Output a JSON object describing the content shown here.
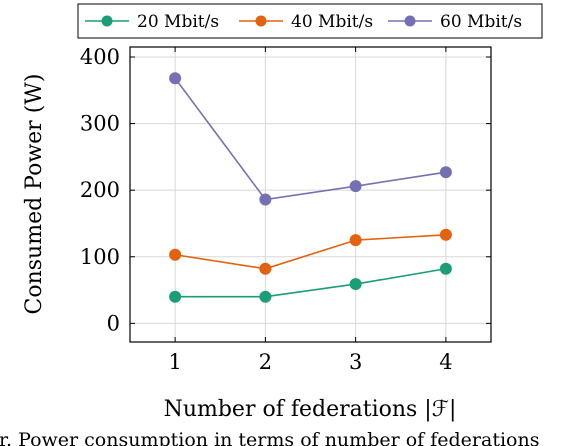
{
  "chart_data": {
    "type": "line",
    "x": [
      1,
      2,
      3,
      4
    ],
    "series": [
      {
        "name": "20 Mbit/s",
        "values": [
          40,
          40,
          59,
          82
        ],
        "color": "#1b9e77"
      },
      {
        "name": "40 Mbit/s",
        "values": [
          103,
          82,
          125,
          133
        ],
        "color": "#e2620f"
      },
      {
        "name": "60 Mbit/s",
        "values": [
          368,
          186,
          206,
          227
        ],
        "color": "#7570b3"
      }
    ],
    "xticks": [
      "1",
      "2",
      "3",
      "4"
    ],
    "yticks": [
      "0",
      "100",
      "200",
      "300",
      "400"
    ],
    "xlabel": "Number of federations |ℱ|",
    "ylabel": "Consumed Power (W)",
    "xlim": [
      0.5,
      4.5
    ],
    "ylim": [
      -28,
      415
    ],
    "grid": true,
    "legend_position": "top"
  },
  "caption": "r. Power consumption in terms of number of federations"
}
